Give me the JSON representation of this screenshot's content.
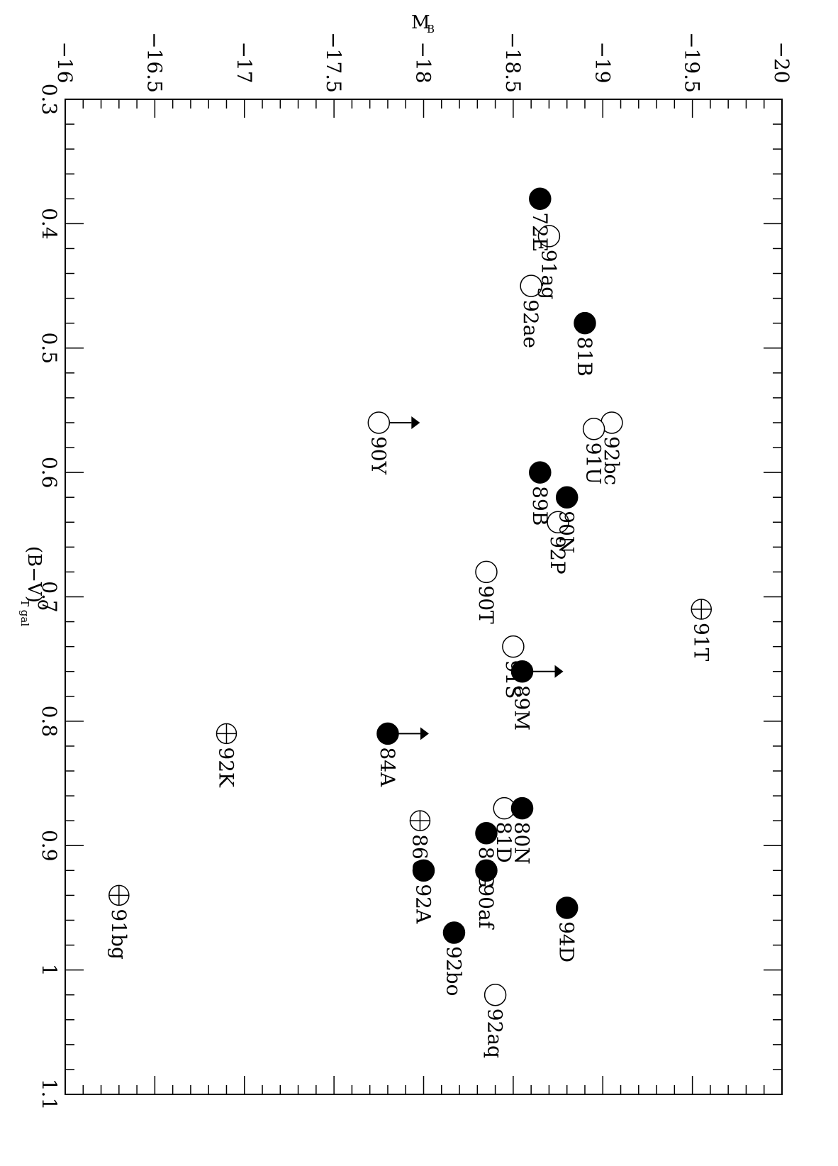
{
  "chart_data": {
    "type": "scatter",
    "orientation": "rotated-90-clockwise",
    "xlabel": "(B−V)",
    "xlabel_subscript": "T gal",
    "xlabel_superscript": "o",
    "ylabel": "M",
    "ylabel_subscript": "B",
    "xlim": [
      0.3,
      1.1
    ],
    "ylim": [
      -16,
      -20
    ],
    "x_ticks": [
      "0.3",
      "0.4",
      "0.5",
      "0.6",
      "0.7",
      "0.8",
      "0.9",
      "1",
      "1.1"
    ],
    "x_tick_values": [
      0.3,
      0.4,
      0.5,
      0.6,
      0.7,
      0.8,
      0.9,
      1.0,
      1.1
    ],
    "y_ticks": [
      "−16",
      "−16.5",
      "−17",
      "−17.5",
      "−18",
      "−18.5",
      "−19",
      "−19.5",
      "−20"
    ],
    "y_tick_values": [
      -16,
      -16.5,
      -17,
      -17.5,
      -18,
      -18.5,
      -19,
      -19.5,
      -20
    ],
    "marker_types": {
      "filled": "filled-circle",
      "open": "open-circle",
      "cross": "circle-plus"
    },
    "points": [
      {
        "label": "72E",
        "x": 0.38,
        "y": -18.65,
        "marker": "filled"
      },
      {
        "label": "91ag",
        "x": 0.41,
        "y": -18.7,
        "marker": "open"
      },
      {
        "label": "92ae",
        "x": 0.45,
        "y": -18.6,
        "marker": "open"
      },
      {
        "label": "81B",
        "x": 0.48,
        "y": -18.9,
        "marker": "filled"
      },
      {
        "label": "92bc",
        "x": 0.56,
        "y": -19.05,
        "marker": "open"
      },
      {
        "label": "91U",
        "x": 0.565,
        "y": -18.95,
        "marker": "open"
      },
      {
        "label": "90Y",
        "x": 0.56,
        "y": -17.75,
        "marker": "open",
        "limit": "lower"
      },
      {
        "label": "89B",
        "x": 0.6,
        "y": -18.65,
        "marker": "filled"
      },
      {
        "label": "90N",
        "x": 0.62,
        "y": -18.8,
        "marker": "filled"
      },
      {
        "label": "92P",
        "x": 0.64,
        "y": -18.75,
        "marker": "open"
      },
      {
        "label": "90T",
        "x": 0.68,
        "y": -18.35,
        "marker": "open"
      },
      {
        "label": "91S",
        "x": 0.74,
        "y": -18.5,
        "marker": "open"
      },
      {
        "label": "91T",
        "x": 0.71,
        "y": -19.55,
        "marker": "cross"
      },
      {
        "label": "89M",
        "x": 0.76,
        "y": -18.55,
        "marker": "filled",
        "limit": "lower"
      },
      {
        "label": "84A",
        "x": 0.81,
        "y": -17.8,
        "marker": "filled",
        "limit": "lower"
      },
      {
        "label": "92K",
        "x": 0.81,
        "y": -16.9,
        "marker": "cross"
      },
      {
        "label": "81D",
        "x": 0.87,
        "y": -18.45,
        "marker": "open"
      },
      {
        "label": "80N",
        "x": 0.87,
        "y": -18.55,
        "marker": "filled"
      },
      {
        "label": "83G",
        "x": 0.89,
        "y": -18.35,
        "marker": "filled"
      },
      {
        "label": "86G",
        "x": 0.88,
        "y": -17.98,
        "marker": "cross"
      },
      {
        "label": "92A",
        "x": 0.92,
        "y": -18.0,
        "marker": "filled"
      },
      {
        "label": "90af",
        "x": 0.92,
        "y": -18.35,
        "marker": "filled"
      },
      {
        "label": "94D",
        "x": 0.95,
        "y": -18.8,
        "marker": "filled"
      },
      {
        "label": "91bg",
        "x": 0.94,
        "y": -16.3,
        "marker": "cross"
      },
      {
        "label": "92bo",
        "x": 0.97,
        "y": -18.17,
        "marker": "filled"
      },
      {
        "label": "92aq",
        "x": 1.02,
        "y": -18.4,
        "marker": "open"
      }
    ]
  }
}
